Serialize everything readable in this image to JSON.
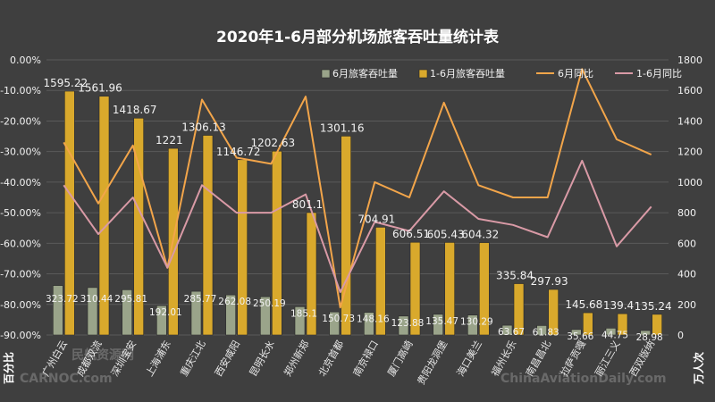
{
  "chart_data": {
    "type": "bar",
    "title": "2020年1-6月部分机场旅客吞吐量统计表",
    "y_left_label": "百分比",
    "y_right_label": "万人次",
    "y_left_ticks": [
      "0.00%",
      "-10.00%",
      "-20.00%",
      "-30.00%",
      "-40.00%",
      "-50.00%",
      "-60.00%",
      "-70.00%",
      "-80.00%",
      "-90.00%"
    ],
    "y_right_ticks": [
      "1800",
      "1600",
      "1400",
      "1200",
      "1000",
      "800",
      "600",
      "400",
      "200",
      "0"
    ],
    "ylim_left": [
      -90,
      0
    ],
    "ylim_right": [
      0,
      1800
    ],
    "legend_position": "top-right",
    "categories": [
      "广州白云",
      "成都双流",
      "深圳宝安",
      "上海浦东",
      "重庆江北",
      "西安咸阳",
      "昆明长水",
      "郑州新郑",
      "北京首都",
      "南京禄口",
      "厦门高崎",
      "贵阳龙洞堡",
      "海口美兰",
      "福州长乐",
      "南昌昌北",
      "拉萨贡嘎",
      "丽江三义",
      "西双版纳"
    ],
    "series": [
      {
        "name": "6月旅客吞吐量",
        "type": "bar",
        "color": "#9aa48a",
        "values": [
          323.72,
          310.44,
          295.81,
          192.01,
          285.77,
          262.08,
          250.19,
          185.1,
          150.73,
          148.16,
          123.88,
          135.47,
          130.29,
          63.67,
          61.83,
          35.66,
          44.75,
          28.98
        ],
        "labels": [
          "323.72",
          "310.44",
          "295.81",
          "192.01",
          "285.77",
          "262.08",
          "250.19",
          "185.1",
          "150.73",
          "148.16",
          "123.88",
          "135.47",
          "130.29",
          "63.67",
          "61.83",
          "35.66",
          "44.75",
          "28.98"
        ]
      },
      {
        "name": "1-6月旅客吞吐量",
        "type": "bar",
        "color": "#d9a92c",
        "values": [
          1595.22,
          1561.96,
          1418.67,
          1221,
          1306.13,
          1146.72,
          1202.63,
          801.1,
          1301.16,
          704.91,
          606.51,
          605.43,
          604.32,
          335.84,
          297.93,
          145.68,
          139.4,
          135.24
        ],
        "labels": [
          "1595.22",
          "1561.96",
          "1418.67",
          "1221",
          "1306.13",
          "1146.72",
          "1202.63",
          "801.1",
          "1301.16",
          "704.91",
          "606.51",
          "605.43",
          "604.32",
          "335.84",
          "297.93",
          "145.68",
          "139.4",
          "135.24"
        ]
      },
      {
        "name": "6月同比",
        "type": "line",
        "color": "#f2a54a",
        "unit": "%",
        "values": [
          -27,
          -47,
          -28,
          -68,
          -13,
          -32,
          -34,
          -12,
          -81,
          -40,
          -45,
          -14,
          -41,
          -45,
          -45,
          -3,
          -26,
          -31
        ]
      },
      {
        "name": "1-6月同比",
        "type": "line",
        "color": "#d99aa6",
        "unit": "%",
        "values": [
          -41,
          -57,
          -45,
          -68,
          -41,
          -50,
          -50,
          -44,
          -76,
          -53,
          -56,
          -43,
          -52,
          -54,
          -58,
          -33,
          -61,
          -48
        ]
      }
    ],
    "watermark": [
      "民航资源网",
      "CARNOC.com",
      "ChinaAviationDaily.com"
    ]
  }
}
